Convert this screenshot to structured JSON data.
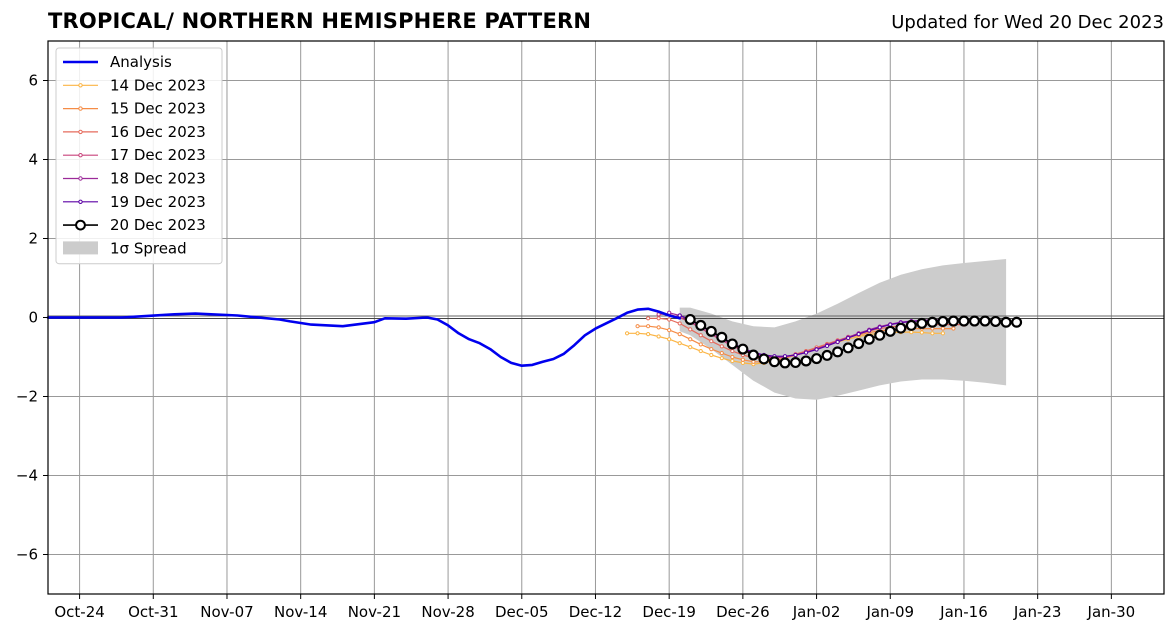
{
  "title": "TROPICAL/ NORTHERN HEMISPHERE PATTERN",
  "subtitle": "Updated for Wed 20 Dec 2023",
  "chart_data": {
    "type": "line",
    "xlabel": "",
    "ylabel": "",
    "x_axis": {
      "type": "date",
      "start": "2023-10-21",
      "end": "2024-02-04",
      "tick_labels": [
        "Oct-24",
        "Oct-31",
        "Nov-07",
        "Nov-14",
        "Nov-21",
        "Nov-28",
        "Dec-05",
        "Dec-12",
        "Dec-19",
        "Dec-26",
        "Jan-02",
        "Jan-09",
        "Jan-16",
        "Jan-23",
        "Jan-30"
      ],
      "tick_dates": [
        "2023-10-24",
        "2023-10-31",
        "2023-11-07",
        "2023-11-14",
        "2023-11-21",
        "2023-11-28",
        "2023-12-05",
        "2023-12-12",
        "2023-12-19",
        "2023-12-26",
        "2024-01-02",
        "2024-01-09",
        "2024-01-16",
        "2024-01-23",
        "2024-01-30"
      ]
    },
    "ylim": [
      -7,
      7
    ],
    "y_ticks": [
      -6,
      -4,
      -2,
      0,
      2,
      4,
      6
    ],
    "y_tick_labels": [
      "−6",
      "−4",
      "−2",
      "0",
      "2",
      "4",
      "6"
    ],
    "grid": true,
    "zero_line": true,
    "legend": {
      "placement": "top-left"
    },
    "colors": {
      "analysis": "#0000ee",
      "grid": "#999999",
      "spread": "#cccccc",
      "ens_14": "#fbb545",
      "ens_15": "#f58c46",
      "ens_16": "#e56b5d",
      "ens_17": "#c8437b",
      "ens_18": "#9c2a99",
      "ens_19": "#5b01a5",
      "ens_20": "#000000"
    },
    "analysis": {
      "name": "Analysis",
      "x": [
        "2023-10-21",
        "2023-10-28",
        "2023-11-02",
        "2023-11-04",
        "2023-11-08",
        "2023-11-12",
        "2023-11-13",
        "2023-11-15",
        "2023-11-18",
        "2023-11-21",
        "2023-11-22",
        "2023-11-24",
        "2023-11-26",
        "2023-11-27",
        "2023-11-28",
        "2023-11-29",
        "2023-11-30",
        "2023-12-01",
        "2023-12-02",
        "2023-12-03",
        "2023-12-04",
        "2023-12-05",
        "2023-12-06",
        "2023-12-07",
        "2023-12-08",
        "2023-12-09",
        "2023-12-10",
        "2023-12-11",
        "2023-12-12",
        "2023-12-13",
        "2023-12-14",
        "2023-12-15",
        "2023-12-16",
        "2023-12-17",
        "2023-12-18",
        "2023-12-19",
        "2023-12-20"
      ],
      "y": [
        0.0,
        0.0,
        0.08,
        0.1,
        0.05,
        -0.05,
        -0.1,
        -0.18,
        -0.22,
        -0.12,
        -0.02,
        -0.03,
        0.0,
        -0.05,
        -0.2,
        -0.4,
        -0.55,
        -0.65,
        -0.8,
        -1.0,
        -1.15,
        -1.22,
        -1.2,
        -1.12,
        -1.05,
        -0.92,
        -0.7,
        -0.45,
        -0.28,
        -0.15,
        -0.02,
        0.12,
        0.2,
        0.22,
        0.15,
        0.05,
        -0.02
      ]
    },
    "series": [
      {
        "name": "14 Dec 2023",
        "color_key": "ens_14",
        "start": "2023-12-15",
        "values": [
          -0.4,
          -0.4,
          -0.42,
          -0.48,
          -0.55,
          -0.65,
          -0.75,
          -0.85,
          -0.95,
          -1.03,
          -1.1,
          -1.15,
          -1.18,
          -1.15,
          -1.1,
          -1.03,
          -0.95,
          -0.87,
          -0.78,
          -0.7,
          -0.62,
          -0.55,
          -0.48,
          -0.43,
          -0.4,
          -0.38,
          -0.37,
          -0.37,
          -0.38,
          -0.4,
          -0.4
        ]
      },
      {
        "name": "15 Dec 2023",
        "color_key": "ens_15",
        "start": "2023-12-16",
        "values": [
          -0.22,
          -0.22,
          -0.25,
          -0.32,
          -0.42,
          -0.55,
          -0.68,
          -0.8,
          -0.9,
          -1.0,
          -1.07,
          -1.12,
          -1.13,
          -1.1,
          -1.03,
          -0.95,
          -0.86,
          -0.77,
          -0.68,
          -0.59,
          -0.51,
          -0.44,
          -0.38,
          -0.34,
          -0.31,
          -0.29,
          -0.28,
          -0.28,
          -0.28,
          -0.28,
          -0.28
        ]
      },
      {
        "name": "16 Dec 2023",
        "color_key": "ens_16",
        "start": "2023-12-17",
        "values": [
          -0.02,
          -0.02,
          -0.05,
          -0.15,
          -0.3,
          -0.45,
          -0.6,
          -0.73,
          -0.85,
          -0.95,
          -1.02,
          -1.05,
          -1.04,
          -1.0,
          -0.93,
          -0.85,
          -0.76,
          -0.67,
          -0.58,
          -0.49,
          -0.41,
          -0.34,
          -0.28,
          -0.24,
          -0.21,
          -0.19,
          -0.18,
          -0.18,
          -0.18,
          -0.18,
          -0.18
        ]
      },
      {
        "name": "17 Dec 2023",
        "color_key": "ens_17",
        "start": "2023-12-18",
        "values": [
          0.08,
          0.08,
          0.0,
          -0.12,
          -0.27,
          -0.43,
          -0.58,
          -0.72,
          -0.84,
          -0.94,
          -1.0,
          -1.02,
          -1.0,
          -0.95,
          -0.88,
          -0.8,
          -0.7,
          -0.6,
          -0.5,
          -0.4,
          -0.32,
          -0.24,
          -0.18,
          -0.13,
          -0.1,
          -0.08,
          -0.07,
          -0.07,
          -0.07,
          -0.07,
          -0.07
        ]
      },
      {
        "name": "18 Dec 2023",
        "color_key": "ens_18",
        "start": "2023-12-19",
        "values": [
          0.12,
          0.05,
          -0.08,
          -0.22,
          -0.38,
          -0.54,
          -0.68,
          -0.8,
          -0.9,
          -0.97,
          -1.0,
          -0.99,
          -0.95,
          -0.88,
          -0.8,
          -0.7,
          -0.6,
          -0.5,
          -0.4,
          -0.31,
          -0.23,
          -0.17,
          -0.12,
          -0.09,
          -0.07,
          -0.06,
          -0.06,
          -0.06,
          -0.06,
          -0.06
        ]
      },
      {
        "name": "19 Dec 2023",
        "color_key": "ens_19",
        "start": "2023-12-20",
        "values": [
          0.05,
          -0.05,
          -0.2,
          -0.35,
          -0.5,
          -0.65,
          -0.78,
          -0.88,
          -0.95,
          -0.98,
          -0.98,
          -0.95,
          -0.89,
          -0.81,
          -0.72,
          -0.62,
          -0.52,
          -0.42,
          -0.33,
          -0.25,
          -0.18,
          -0.13,
          -0.1,
          -0.08,
          -0.07,
          -0.07,
          -0.07,
          -0.07,
          -0.07,
          -0.07
        ]
      },
      {
        "name": "20 Dec 2023",
        "color_key": "ens_20",
        "start": "2023-12-21",
        "markers": "open-circle",
        "values": [
          -0.05,
          -0.2,
          -0.35,
          -0.5,
          -0.67,
          -0.8,
          -0.95,
          -1.05,
          -1.12,
          -1.15,
          -1.14,
          -1.1,
          -1.04,
          -0.96,
          -0.87,
          -0.77,
          -0.66,
          -0.55,
          -0.45,
          -0.35,
          -0.27,
          -0.2,
          -0.15,
          -0.12,
          -0.1,
          -0.09,
          -0.09,
          -0.09,
          -0.09,
          -0.1,
          -0.12,
          -0.12
        ]
      }
    ],
    "spread": {
      "name": "1σ Spread",
      "x": [
        "2023-12-20",
        "2023-12-21",
        "2023-12-23",
        "2023-12-25",
        "2023-12-27",
        "2023-12-29",
        "2023-12-31",
        "2024-01-02",
        "2024-01-04",
        "2024-01-06",
        "2024-01-08",
        "2024-01-10",
        "2024-01-12",
        "2024-01-14",
        "2024-01-16",
        "2024-01-18",
        "2024-01-20"
      ],
      "upper": [
        0.25,
        0.25,
        0.1,
        -0.1,
        -0.22,
        -0.25,
        -0.1,
        0.1,
        0.35,
        0.62,
        0.88,
        1.08,
        1.22,
        1.32,
        1.38,
        1.43,
        1.48
      ],
      "lower": [
        -0.35,
        -0.45,
        -0.8,
        -1.2,
        -1.6,
        -1.9,
        -2.05,
        -2.08,
        -1.98,
        -1.85,
        -1.72,
        -1.62,
        -1.57,
        -1.57,
        -1.6,
        -1.65,
        -1.72
      ]
    }
  }
}
